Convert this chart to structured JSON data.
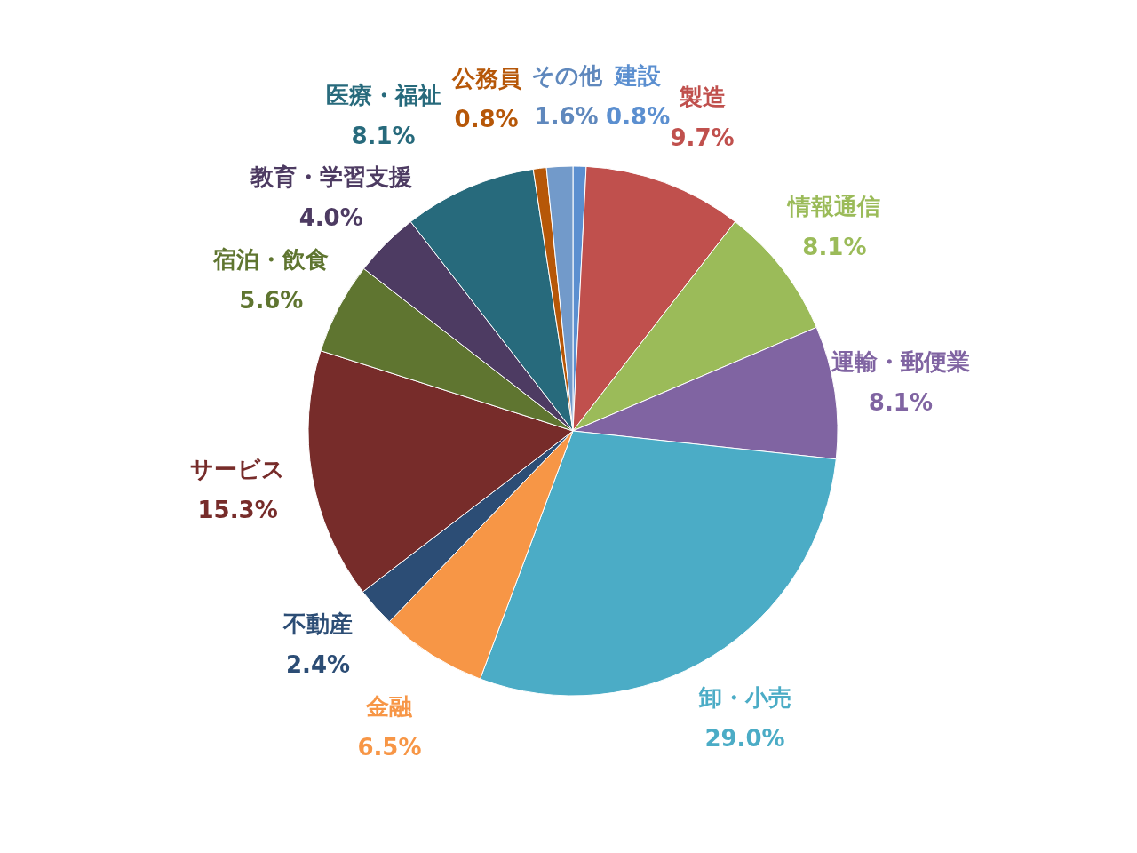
{
  "chart_data": {
    "type": "pie",
    "categories": [
      "建設",
      "製造",
      "情報通信",
      "運輸・郵便業",
      "卸・小売",
      "金融",
      "不動産",
      "サービス",
      "宿泊・飲食",
      "教育・学習支援",
      "医療・福祉",
      "公務員",
      "その他"
    ],
    "values": [
      0.8,
      9.7,
      8.1,
      8.1,
      29.0,
      6.5,
      2.4,
      15.3,
      5.6,
      4.0,
      8.1,
      0.8,
      1.6
    ],
    "value_labels": [
      "0.8%",
      "9.7%",
      "8.1%",
      "8.1%",
      "29.0%",
      "6.5%",
      "2.4%",
      "15.3%",
      "5.6%",
      "4.0%",
      "8.1%",
      "0.8%",
      "1.6%"
    ],
    "colors": [
      "#5b8fd0",
      "#c0504d",
      "#9bbb59",
      "#8064a2",
      "#4bacc6",
      "#f79646",
      "#2c4d75",
      "#772c2a",
      "#5f7530",
      "#4d3b62",
      "#276a7c",
      "#b65708",
      "#729aca"
    ],
    "legend": false
  }
}
